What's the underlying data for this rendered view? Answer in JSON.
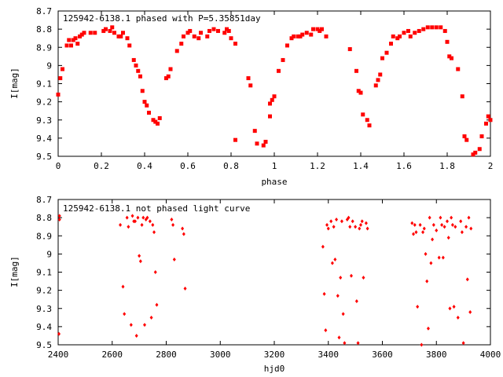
{
  "chart_data": [
    {
      "type": "scatter",
      "title": "125942-6138.1 phased with P=5.35851day",
      "xlabel": "phase",
      "ylabel": "I[mag]",
      "xlim": [
        0,
        2
      ],
      "ylim": [
        9.5,
        8.7
      ],
      "y_inverted": true,
      "grid": false,
      "marker_color": "#ff0000",
      "marker": "filled-square",
      "xticks": [
        0,
        0.2,
        0.4,
        0.6,
        0.8,
        1,
        1.2,
        1.4,
        1.6,
        1.8,
        2
      ],
      "xtick_labels": [
        "0",
        "0.2",
        "0.4",
        "0.6",
        "0.8",
        "1",
        "1.2",
        "1.4",
        "1.6",
        "1.8",
        "2"
      ],
      "yticks": [
        8.7,
        8.8,
        8.9,
        9,
        9.1,
        9.2,
        9.3,
        9.4,
        9.5
      ],
      "ytick_labels": [
        "8.7",
        "8.8",
        "8.9",
        "9",
        "9.1",
        "9.2",
        "9.3",
        "9.4",
        "9.5"
      ],
      "points": [
        [
          0.0,
          9.16
        ],
        [
          0.01,
          9.07
        ],
        [
          0.02,
          9.02
        ],
        [
          0.04,
          8.89
        ],
        [
          0.05,
          8.86
        ],
        [
          0.06,
          8.89
        ],
        [
          0.07,
          8.86
        ],
        [
          0.08,
          8.85
        ],
        [
          0.09,
          8.88
        ],
        [
          0.1,
          8.84
        ],
        [
          0.11,
          8.83
        ],
        [
          0.12,
          8.82
        ],
        [
          0.15,
          8.82
        ],
        [
          0.17,
          8.82
        ],
        [
          0.21,
          8.81
        ],
        [
          0.22,
          8.8
        ],
        [
          0.24,
          8.81
        ],
        [
          0.25,
          8.79
        ],
        [
          0.26,
          8.82
        ],
        [
          0.28,
          8.84
        ],
        [
          0.29,
          8.84
        ],
        [
          0.3,
          8.82
        ],
        [
          0.32,
          8.85
        ],
        [
          0.33,
          8.89
        ],
        [
          0.35,
          8.97
        ],
        [
          0.36,
          9.0
        ],
        [
          0.37,
          9.03
        ],
        [
          0.38,
          9.06
        ],
        [
          0.39,
          9.14
        ],
        [
          0.4,
          9.2
        ],
        [
          0.41,
          9.22
        ],
        [
          0.42,
          9.26
        ],
        [
          0.44,
          9.3
        ],
        [
          0.45,
          9.31
        ],
        [
          0.46,
          9.32
        ],
        [
          0.47,
          9.29
        ],
        [
          0.5,
          9.07
        ],
        [
          0.51,
          9.06
        ],
        [
          0.52,
          9.02
        ],
        [
          0.55,
          8.92
        ],
        [
          0.57,
          8.88
        ],
        [
          0.58,
          8.84
        ],
        [
          0.6,
          8.82
        ],
        [
          0.61,
          8.81
        ],
        [
          0.63,
          8.84
        ],
        [
          0.65,
          8.85
        ],
        [
          0.66,
          8.82
        ],
        [
          0.69,
          8.84
        ],
        [
          0.7,
          8.81
        ],
        [
          0.72,
          8.8
        ],
        [
          0.74,
          8.81
        ],
        [
          0.77,
          8.82
        ],
        [
          0.78,
          8.8
        ],
        [
          0.79,
          8.81
        ],
        [
          0.8,
          8.85
        ],
        [
          0.82,
          8.88
        ],
        [
          0.82,
          9.41
        ],
        [
          0.88,
          9.07
        ],
        [
          0.89,
          9.11
        ],
        [
          0.91,
          9.36
        ],
        [
          0.92,
          9.43
        ],
        [
          0.95,
          9.44
        ],
        [
          0.96,
          9.42
        ],
        [
          0.98,
          9.28
        ],
        [
          0.98,
          9.21
        ],
        [
          0.99,
          9.19
        ],
        [
          1.0,
          9.17
        ],
        [
          1.02,
          9.03
        ],
        [
          1.04,
          8.97
        ],
        [
          1.06,
          8.89
        ],
        [
          1.08,
          8.85
        ],
        [
          1.09,
          8.84
        ],
        [
          1.11,
          8.84
        ],
        [
          1.12,
          8.84
        ],
        [
          1.13,
          8.83
        ],
        [
          1.15,
          8.82
        ],
        [
          1.17,
          8.83
        ],
        [
          1.18,
          8.8
        ],
        [
          1.2,
          8.8
        ],
        [
          1.21,
          8.81
        ],
        [
          1.22,
          8.8
        ],
        [
          1.24,
          8.84
        ],
        [
          1.35,
          8.91
        ],
        [
          1.38,
          9.03
        ],
        [
          1.39,
          9.14
        ],
        [
          1.4,
          9.15
        ],
        [
          1.41,
          9.27
        ],
        [
          1.43,
          9.3
        ],
        [
          1.44,
          9.33
        ],
        [
          1.47,
          9.11
        ],
        [
          1.48,
          9.08
        ],
        [
          1.49,
          9.05
        ],
        [
          1.5,
          8.96
        ],
        [
          1.52,
          8.93
        ],
        [
          1.54,
          8.88
        ],
        [
          1.55,
          8.84
        ],
        [
          1.57,
          8.85
        ],
        [
          1.58,
          8.84
        ],
        [
          1.6,
          8.82
        ],
        [
          1.62,
          8.81
        ],
        [
          1.63,
          8.84
        ],
        [
          1.65,
          8.82
        ],
        [
          1.67,
          8.81
        ],
        [
          1.69,
          8.8
        ],
        [
          1.71,
          8.79
        ],
        [
          1.73,
          8.79
        ],
        [
          1.75,
          8.79
        ],
        [
          1.77,
          8.79
        ],
        [
          1.79,
          8.81
        ],
        [
          1.8,
          8.87
        ],
        [
          1.81,
          8.95
        ],
        [
          1.82,
          8.96
        ],
        [
          1.85,
          9.02
        ],
        [
          1.87,
          9.17
        ],
        [
          1.88,
          9.39
        ],
        [
          1.89,
          9.41
        ],
        [
          1.92,
          9.49
        ],
        [
          1.93,
          9.48
        ],
        [
          1.95,
          9.46
        ],
        [
          1.96,
          9.39
        ],
        [
          1.98,
          9.32
        ],
        [
          1.99,
          9.28
        ],
        [
          2.0,
          9.3
        ]
      ]
    },
    {
      "type": "scatter",
      "title": "125942-6138.1 not phased light curve",
      "xlabel": "hjd0",
      "ylabel": "I[mag]",
      "xlim": [
        2400,
        4000
      ],
      "ylim": [
        9.5,
        8.7
      ],
      "y_inverted": true,
      "grid": false,
      "marker_color": "#ff0000",
      "marker": "filled-diamond",
      "xticks": [
        2400,
        2600,
        2800,
        3000,
        3200,
        3400,
        3600,
        3800,
        4000
      ],
      "xtick_labels": [
        "2400",
        "2600",
        "2800",
        "3000",
        "3200",
        "3400",
        "3600",
        "3800",
        "4000"
      ],
      "yticks": [
        8.7,
        8.8,
        8.9,
        9,
        9.1,
        9.2,
        9.3,
        9.4,
        9.5
      ],
      "ytick_labels": [
        "8.7",
        "8.8",
        "8.9",
        "9",
        "9.1",
        "9.2",
        "9.3",
        "9.4",
        "9.5"
      ],
      "points": [
        [
          2405,
          8.79
        ],
        [
          2405,
          8.81
        ],
        [
          2403,
          9.44
        ],
        [
          2630,
          8.84
        ],
        [
          2640,
          9.18
        ],
        [
          2645,
          9.33
        ],
        [
          2655,
          8.8
        ],
        [
          2660,
          8.85
        ],
        [
          2670,
          9.39
        ],
        [
          2675,
          8.79
        ],
        [
          2680,
          8.82
        ],
        [
          2685,
          8.82
        ],
        [
          2690,
          9.45
        ],
        [
          2695,
          8.8
        ],
        [
          2700,
          9.01
        ],
        [
          2705,
          9.04
        ],
        [
          2710,
          8.84
        ],
        [
          2715,
          8.8
        ],
        [
          2720,
          9.39
        ],
        [
          2725,
          8.81
        ],
        [
          2730,
          8.8
        ],
        [
          2740,
          8.82
        ],
        [
          2745,
          9.35
        ],
        [
          2750,
          8.84
        ],
        [
          2755,
          8.88
        ],
        [
          2760,
          9.1
        ],
        [
          2765,
          9.28
        ],
        [
          2820,
          8.81
        ],
        [
          2825,
          8.84
        ],
        [
          2830,
          9.03
        ],
        [
          2860,
          8.86
        ],
        [
          2865,
          8.89
        ],
        [
          2870,
          9.19
        ],
        [
          3380,
          8.96
        ],
        [
          3385,
          9.22
        ],
        [
          3390,
          9.42
        ],
        [
          3395,
          8.84
        ],
        [
          3400,
          8.86
        ],
        [
          3410,
          8.82
        ],
        [
          3415,
          9.05
        ],
        [
          3420,
          8.85
        ],
        [
          3425,
          9.03
        ],
        [
          3430,
          8.81
        ],
        [
          3435,
          9.23
        ],
        [
          3440,
          9.46
        ],
        [
          3445,
          9.13
        ],
        [
          3450,
          8.82
        ],
        [
          3455,
          9.33
        ],
        [
          3460,
          9.49
        ],
        [
          3470,
          8.81
        ],
        [
          3475,
          8.8
        ],
        [
          3480,
          8.85
        ],
        [
          3485,
          9.12
        ],
        [
          3490,
          8.82
        ],
        [
          3500,
          8.85
        ],
        [
          3505,
          9.26
        ],
        [
          3510,
          9.49
        ],
        [
          3515,
          8.86
        ],
        [
          3520,
          8.84
        ],
        [
          3525,
          8.82
        ],
        [
          3530,
          9.13
        ],
        [
          3540,
          8.83
        ],
        [
          3545,
          8.86
        ],
        [
          3710,
          8.83
        ],
        [
          3715,
          8.89
        ],
        [
          3720,
          8.84
        ],
        [
          3725,
          8.88
        ],
        [
          3730,
          9.29
        ],
        [
          3740,
          8.84
        ],
        [
          3745,
          9.5
        ],
        [
          3750,
          8.88
        ],
        [
          3755,
          8.86
        ],
        [
          3760,
          9.0
        ],
        [
          3765,
          9.15
        ],
        [
          3770,
          9.41
        ],
        [
          3775,
          8.8
        ],
        [
          3780,
          9.05
        ],
        [
          3785,
          8.92
        ],
        [
          3790,
          8.84
        ],
        [
          3800,
          8.87
        ],
        [
          3810,
          9.02
        ],
        [
          3815,
          8.8
        ],
        [
          3820,
          8.84
        ],
        [
          3825,
          9.02
        ],
        [
          3830,
          8.85
        ],
        [
          3840,
          8.82
        ],
        [
          3845,
          8.91
        ],
        [
          3850,
          9.3
        ],
        [
          3855,
          8.8
        ],
        [
          3860,
          8.84
        ],
        [
          3865,
          9.29
        ],
        [
          3870,
          8.85
        ],
        [
          3880,
          9.35
        ],
        [
          3890,
          8.82
        ],
        [
          3895,
          8.88
        ],
        [
          3900,
          9.49
        ],
        [
          3910,
          8.85
        ],
        [
          3915,
          9.14
        ],
        [
          3920,
          8.8
        ],
        [
          3925,
          9.32
        ],
        [
          3928,
          8.86
        ]
      ]
    }
  ]
}
